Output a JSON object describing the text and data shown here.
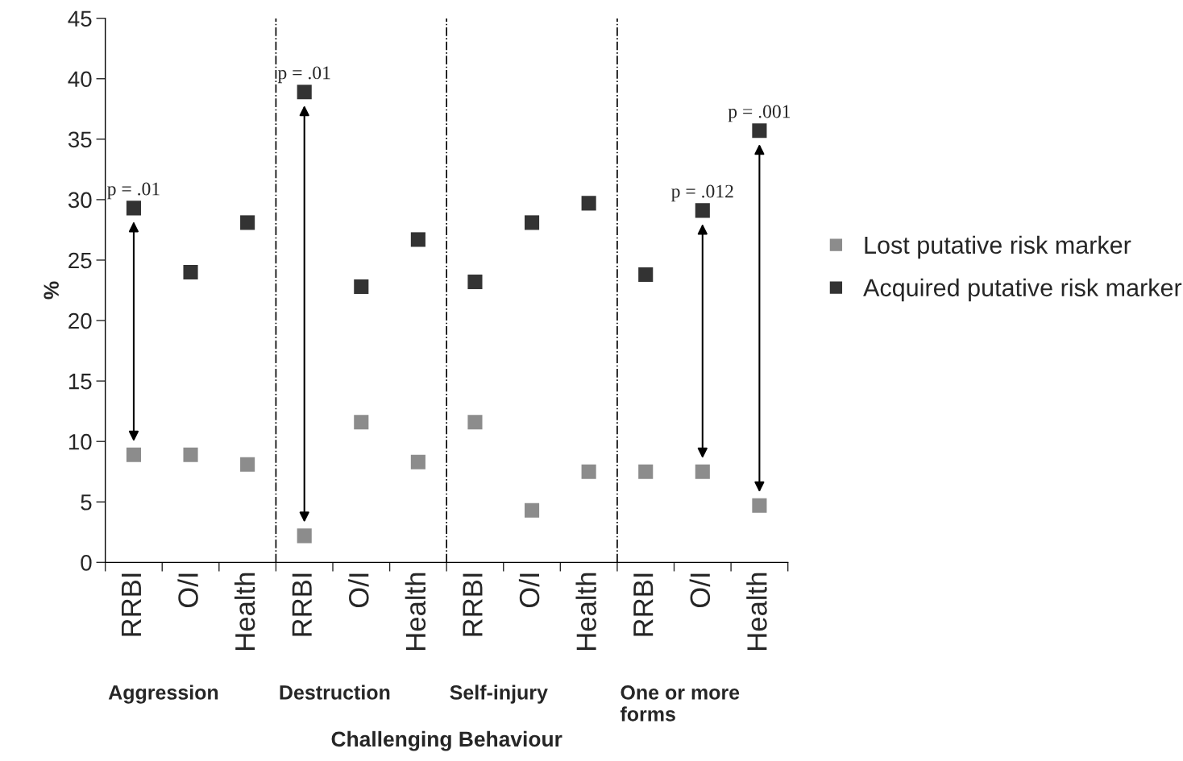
{
  "chart_data": {
    "type": "scatter",
    "xlabel": "Challenging Behaviour",
    "ylabel": "%",
    "categories": [
      "RRBI",
      "O/I",
      "Health",
      "RRBI",
      "O/I",
      "Health",
      "RRBI",
      "O/I",
      "Health",
      "RRBI",
      "O/I",
      "Health"
    ],
    "ylim": [
      0,
      45
    ],
    "yticks": [
      0,
      5,
      10,
      15,
      20,
      25,
      30,
      35,
      40,
      45
    ],
    "series": [
      {
        "name": "Lost putative risk marker",
        "color": "#8c8c8c",
        "values": [
          8.9,
          8.9,
          8.1,
          2.2,
          11.6,
          8.3,
          11.6,
          4.3,
          7.5,
          7.5,
          7.5,
          4.7
        ]
      },
      {
        "name": "Acquired putative risk marker",
        "color": "#333333",
        "values": [
          29.3,
          24.0,
          28.1,
          38.9,
          22.8,
          26.7,
          23.2,
          28.1,
          29.7,
          23.8,
          29.1,
          35.7
        ]
      }
    ],
    "marker": "square",
    "grid": false,
    "legend": "right",
    "annotations": [
      {
        "text": "p = .01",
        "y": 29.3
      },
      {
        "text": "p = .01",
        "y": 38.9
      },
      {
        "text": "p = .012",
        "y": 29.1
      },
      {
        "text": "p = .001",
        "y": 35.7
      },
      "Aggression",
      "Destruction",
      "Self-injury",
      "One or more\nforms"
    ]
  }
}
